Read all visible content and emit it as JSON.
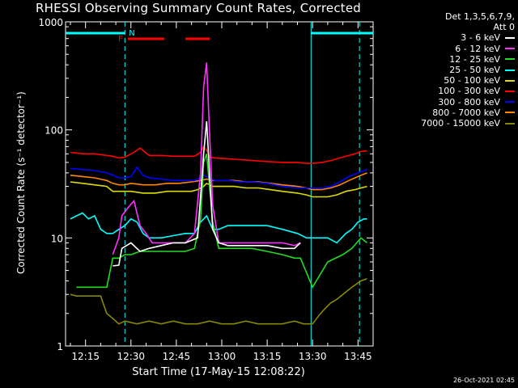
{
  "chart_data": {
    "type": "line",
    "title": "RHESSI Observing Summary Count Rates, Corrected",
    "xlabel": "Start Time (17-May-15 12:08:22)",
    "ylabel": "Corrected Count Rate (s⁻¹ detector⁻¹)",
    "x_unit": "minutes after 12:00 UT",
    "xlim": [
      8.4,
      110
    ],
    "ylim": [
      1,
      1000
    ],
    "y_scale": "log",
    "x_ticks": [
      "12:15",
      "12:30",
      "12:45",
      "13:00",
      "13:15",
      "13:30",
      "13:45"
    ],
    "x_tick_minutes": [
      15,
      30,
      45,
      60,
      75,
      90,
      105
    ],
    "y_ticks": [
      "1",
      "10",
      "100",
      "1000"
    ],
    "y_tick_values": [
      1,
      10,
      100,
      1000
    ],
    "legend_header": [
      "Det 1,3,5,6,7,9,",
      "Att 0"
    ],
    "legend_position": "outside-right",
    "series": [
      {
        "name": "3 - 6 keV",
        "color": "#ffffff",
        "x": [
          24,
          26,
          27,
          30,
          33,
          36,
          40,
          44,
          48,
          52,
          54,
          55,
          57,
          59,
          62,
          66,
          70,
          75,
          80,
          84,
          86
        ],
        "y": [
          5.5,
          5.6,
          8,
          9,
          7.5,
          8,
          8.5,
          9,
          9,
          10,
          60,
          120,
          12,
          9,
          8.5,
          8.5,
          8.5,
          8.5,
          8,
          8,
          9
        ]
      },
      {
        "name": "6 - 12 keV",
        "color": "#ff30ff",
        "x": [
          24,
          26,
          27,
          29,
          31,
          33,
          35,
          37,
          40,
          44,
          48,
          51,
          53,
          54,
          55,
          56,
          57,
          59,
          62,
          66,
          70,
          75,
          80,
          84,
          86
        ],
        "y": [
          7,
          10,
          16,
          19,
          22,
          13,
          11,
          9,
          9,
          9,
          9,
          11,
          40,
          250,
          420,
          90,
          20,
          9,
          9,
          9,
          9,
          9,
          9,
          8.5,
          9
        ]
      },
      {
        "name": "12 - 25 keV",
        "color": "#22dd22",
        "x": [
          12,
          14,
          16,
          18,
          20,
          22,
          24,
          26,
          28,
          30,
          33,
          36,
          40,
          44,
          48,
          51,
          53,
          54,
          55,
          57,
          59,
          62,
          66,
          70,
          75,
          80,
          84,
          86,
          90,
          95,
          100,
          103,
          106,
          108
        ],
        "y": [
          3.5,
          3.5,
          3.5,
          3.5,
          3.5,
          3.5,
          6.5,
          6.5,
          7,
          7,
          7.5,
          7.5,
          7.5,
          7.5,
          7.5,
          8,
          15,
          50,
          60,
          14,
          8,
          8,
          8,
          8,
          7.5,
          7,
          6.5,
          6.5,
          3.5,
          6,
          7,
          8,
          10,
          9
        ]
      },
      {
        "name": "25 - 50 keV",
        "color": "#00ffff",
        "x": [
          10,
          12,
          14,
          16,
          18,
          20,
          22,
          24,
          26,
          28,
          30,
          32,
          34,
          36,
          40,
          44,
          48,
          51,
          53,
          55,
          57,
          59,
          62,
          66,
          70,
          75,
          80,
          85,
          88,
          90,
          92,
          95,
          98,
          101,
          103,
          105,
          107,
          108
        ],
        "y": [
          15,
          16,
          17,
          15,
          16,
          12,
          11,
          11,
          12,
          13,
          15,
          14,
          11,
          10,
          10,
          10.5,
          11,
          11,
          14,
          16,
          12,
          12,
          13,
          13,
          13,
          13,
          12,
          11,
          10,
          10,
          10,
          10,
          9,
          11,
          12,
          14,
          15,
          15
        ]
      },
      {
        "name": "50 - 100 keV",
        "color": "#dddd00",
        "x": [
          10,
          14,
          18,
          22,
          24,
          26,
          28,
          30,
          34,
          38,
          42,
          46,
          50,
          52,
          54,
          55,
          57,
          60,
          64,
          68,
          72,
          76,
          80,
          85,
          88,
          90,
          92,
          95,
          98,
          101,
          104,
          106,
          108
        ],
        "y": [
          33,
          32,
          31,
          30,
          27,
          27,
          27,
          27,
          26,
          26,
          27,
          27,
          27,
          28,
          30,
          32,
          30,
          30,
          30,
          29,
          29,
          28,
          27,
          26,
          25,
          24,
          24,
          24,
          25,
          27,
          28,
          29,
          30
        ]
      },
      {
        "name": "100 - 300 keV",
        "color": "#ff0000",
        "x": [
          10,
          14,
          18,
          22,
          24,
          26,
          28,
          31,
          33,
          36,
          40,
          44,
          48,
          51,
          53,
          54,
          55,
          56,
          58,
          62,
          66,
          70,
          75,
          80,
          85,
          88,
          90,
          93,
          96,
          99,
          102,
          104,
          106,
          108
        ],
        "y": [
          62,
          60,
          60,
          58,
          57,
          55,
          56,
          62,
          68,
          58,
          58,
          57,
          57,
          57,
          62,
          70,
          65,
          56,
          55,
          54,
          53,
          52,
          51,
          50,
          50,
          49,
          49,
          50,
          52,
          55,
          58,
          60,
          63,
          64
        ]
      },
      {
        "name": "300 - 800 keV",
        "color": "#0000ff",
        "x": [
          10,
          14,
          18,
          22,
          24,
          26,
          28,
          30,
          32,
          34,
          36,
          40,
          44,
          48,
          51,
          53,
          54,
          55,
          56,
          58,
          62,
          66,
          70,
          75,
          80,
          85,
          88,
          90,
          93,
          96,
          99,
          102,
          105,
          108
        ],
        "y": [
          44,
          43,
          42,
          40,
          38,
          36,
          36,
          37,
          45,
          38,
          36,
          35,
          34,
          34,
          34,
          36,
          38,
          37,
          35,
          34,
          34,
          33,
          33,
          32,
          30,
          29,
          29,
          29,
          29,
          30,
          33,
          37,
          40,
          43
        ]
      },
      {
        "name": "800 - 7000 keV",
        "color": "#ff8800",
        "x": [
          10,
          14,
          18,
          22,
          24,
          26,
          28,
          30,
          34,
          38,
          42,
          46,
          50,
          53,
          55,
          57,
          60,
          64,
          68,
          72,
          76,
          80,
          85,
          88,
          90,
          93,
          96,
          99,
          102,
          105,
          108
        ],
        "y": [
          38,
          37,
          36,
          34,
          32,
          31,
          31,
          32,
          31,
          31,
          32,
          32,
          33,
          34,
          35,
          34,
          34,
          34,
          33,
          33,
          32,
          31,
          30,
          29,
          28,
          28,
          29,
          31,
          34,
          37,
          40
        ]
      },
      {
        "name": "7000 - 15000 keV",
        "color": "#888800",
        "x": [
          10,
          12,
          14,
          16,
          18,
          20,
          21,
          22,
          24,
          26,
          28,
          32,
          36,
          40,
          44,
          48,
          52,
          56,
          60,
          64,
          68,
          72,
          76,
          80,
          84,
          87,
          90,
          92,
          94,
          96,
          98,
          100,
          103,
          106,
          108
        ],
        "y": [
          3,
          2.9,
          2.9,
          2.9,
          2.9,
          2.9,
          2.4,
          2,
          1.8,
          1.6,
          1.7,
          1.6,
          1.7,
          1.6,
          1.7,
          1.6,
          1.6,
          1.7,
          1.6,
          1.6,
          1.7,
          1.6,
          1.6,
          1.6,
          1.7,
          1.6,
          1.6,
          1.9,
          2.2,
          2.5,
          2.7,
          3,
          3.5,
          4,
          4.2
        ]
      }
    ],
    "flags": {
      "SAA": {
        "color": "#00ffff",
        "intervals": [
          [
            8.4,
            28
          ],
          [
            89.5,
            110
          ]
        ]
      },
      "F": {
        "label": "F",
        "color": "#ff0000",
        "intervals": [
          [
            29,
            41
          ],
          [
            48,
            56
          ]
        ]
      },
      "N": {
        "label": "N",
        "color": "#00ffff"
      }
    },
    "vertical_markers": [
      {
        "minute": 28,
        "style": "dashed",
        "color": "#00ffff"
      },
      {
        "minute": 89.5,
        "style": "solid",
        "color": "#00ffff"
      },
      {
        "minute": 105.5,
        "style": "dashed",
        "color": "#00ffff"
      }
    ]
  },
  "timestamp": "26-Oct-2021 02:45"
}
